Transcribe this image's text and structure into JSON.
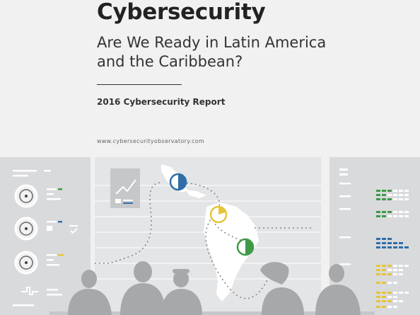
{
  "header": {
    "title": "Cybersecurity",
    "subtitle": "Are We Ready in Latin America\nand the Caribbean?",
    "report": "2016 Cybersecurity Report",
    "url": "www.cybersecurityobservatory.com"
  },
  "colors": {
    "background": "#f1f1f2",
    "panel": "#d9dadc",
    "silhouette": "#a7a8aa",
    "blue": "#2f6ea8",
    "yellow": "#e5c53a",
    "green": "#3e9a47"
  },
  "icons": [
    "chart-icon",
    "dial-icon",
    "map-icon",
    "person-silhouette"
  ]
}
